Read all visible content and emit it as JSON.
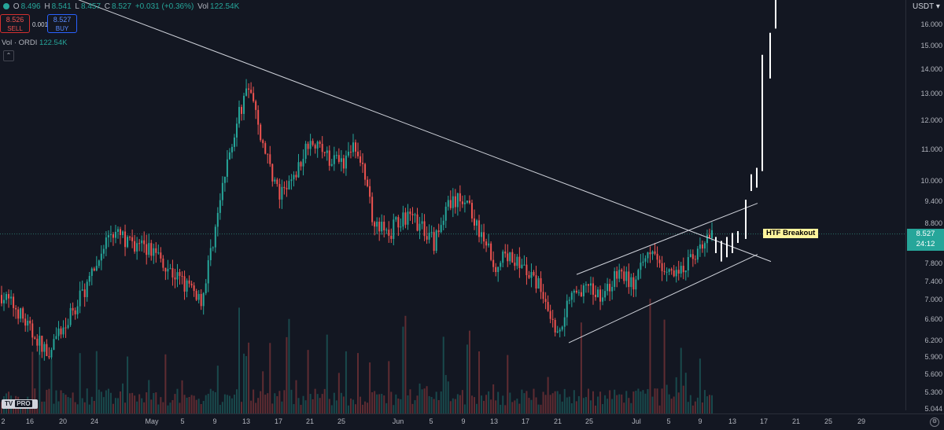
{
  "legend": {
    "open_label": "O",
    "open": "8.496",
    "high_label": "H",
    "high": "8.541",
    "low_label": "L",
    "low": "8.457",
    "close_label": "C",
    "close": "8.527",
    "change": "+0.031 (+0.36%)",
    "vol_label": "Vol",
    "vol": "122.54K"
  },
  "trade": {
    "sell_price": "8.526",
    "sell_label": "SELL",
    "spread": "0.001",
    "buy_price": "8.527",
    "buy_label": "BUY"
  },
  "volume_legend": {
    "label": "Vol · ORDI",
    "value": "122.54K"
  },
  "collapse_icon": "chevron-up-icon",
  "currency": "USDT ▾",
  "current_price": {
    "value": "8.527",
    "countdown": "24:12"
  },
  "logo": {
    "text": "TV",
    "pro": "PRO"
  },
  "annotation": "HTF Breakout",
  "colors": {
    "up": "#26a69a",
    "down": "#ef5350",
    "background": "#131722",
    "annotation_bg": "#fff59d"
  },
  "chart_data": {
    "type": "candlestick",
    "symbol": "ORDI/USDT",
    "price_ticks": [
      "16.000",
      "15.000",
      "14.000",
      "13.000",
      "12.000",
      "11.000",
      "10.000",
      "9.400",
      "8.800",
      "8.200",
      "7.800",
      "7.400",
      "7.000",
      "6.600",
      "6.200",
      "5.900",
      "5.600",
      "5.300",
      "5.044"
    ],
    "time_ticks": [
      "2",
      "16",
      "20",
      "24",
      "May",
      "5",
      "9",
      "13",
      "17",
      "21",
      "25",
      "Jun",
      "5",
      "9",
      "13",
      "17",
      "21",
      "25",
      "Jul",
      "5",
      "9",
      "13",
      "17",
      "21",
      "25",
      "29"
    ],
    "ylim": [
      5.0,
      17.5
    ],
    "log_scale": true,
    "price_path": [
      {
        "t": "Apr 12",
        "p": 7.1
      },
      {
        "t": "Apr 14",
        "p": 6.8
      },
      {
        "t": "Apr 16",
        "p": 6.3
      },
      {
        "t": "Apr 18",
        "p": 6.0
      },
      {
        "t": "Apr 20",
        "p": 6.4
      },
      {
        "t": "Apr 22",
        "p": 7.0
      },
      {
        "t": "Apr 24",
        "p": 7.6
      },
      {
        "t": "Apr 26",
        "p": 8.6
      },
      {
        "t": "Apr 28",
        "p": 8.4
      },
      {
        "t": "Apr 30",
        "p": 8.2
      },
      {
        "t": "May 2",
        "p": 8.1
      },
      {
        "t": "May 4",
        "p": 7.6
      },
      {
        "t": "May 6",
        "p": 7.3
      },
      {
        "t": "May 8",
        "p": 7.0
      },
      {
        "t": "May 10",
        "p": 9.0
      },
      {
        "t": "May 12",
        "p": 11.5
      },
      {
        "t": "May 13",
        "p": 13.3
      },
      {
        "t": "May 15",
        "p": 11.0
      },
      {
        "t": "May 17",
        "p": 9.5
      },
      {
        "t": "May 19",
        "p": 10.1
      },
      {
        "t": "May 21",
        "p": 11.5
      },
      {
        "t": "May 23",
        "p": 10.8
      },
      {
        "t": "May 25",
        "p": 10.5
      },
      {
        "t": "May 27",
        "p": 11.2
      },
      {
        "t": "May 29",
        "p": 9.0
      },
      {
        "t": "May 31",
        "p": 8.5
      },
      {
        "t": "Jun 2",
        "p": 9.0
      },
      {
        "t": "Jun 4",
        "p": 8.8
      },
      {
        "t": "Jun 6",
        "p": 8.3
      },
      {
        "t": "Jun 8",
        "p": 9.3
      },
      {
        "t": "Jun 10",
        "p": 9.5
      },
      {
        "t": "Jun 12",
        "p": 8.5
      },
      {
        "t": "Jun 14",
        "p": 7.8
      },
      {
        "t": "Jun 16",
        "p": 8.0
      },
      {
        "t": "Jun 18",
        "p": 7.6
      },
      {
        "t": "Jun 20",
        "p": 7.2
      },
      {
        "t": "Jun 22",
        "p": 6.3
      },
      {
        "t": "Jun 24",
        "p": 7.3
      },
      {
        "t": "Jun 26",
        "p": 7.2
      },
      {
        "t": "Jun 28",
        "p": 7.1
      },
      {
        "t": "Jun 30",
        "p": 7.6
      },
      {
        "t": "Jul 2",
        "p": 7.3
      },
      {
        "t": "Jul 3",
        "p": 8.2
      },
      {
        "t": "Jul 5",
        "p": 7.5
      },
      {
        "t": "Jul 7",
        "p": 7.6
      },
      {
        "t": "Jul 9",
        "p": 8.0
      },
      {
        "t": "Jul 10",
        "p": 8.527
      }
    ],
    "current_price": 8.527,
    "annotations": [
      "HTF Breakout"
    ],
    "drawings": [
      "descending trendline from early-April high",
      "ascending channel from late-June low",
      "projected bars after breakout"
    ]
  }
}
